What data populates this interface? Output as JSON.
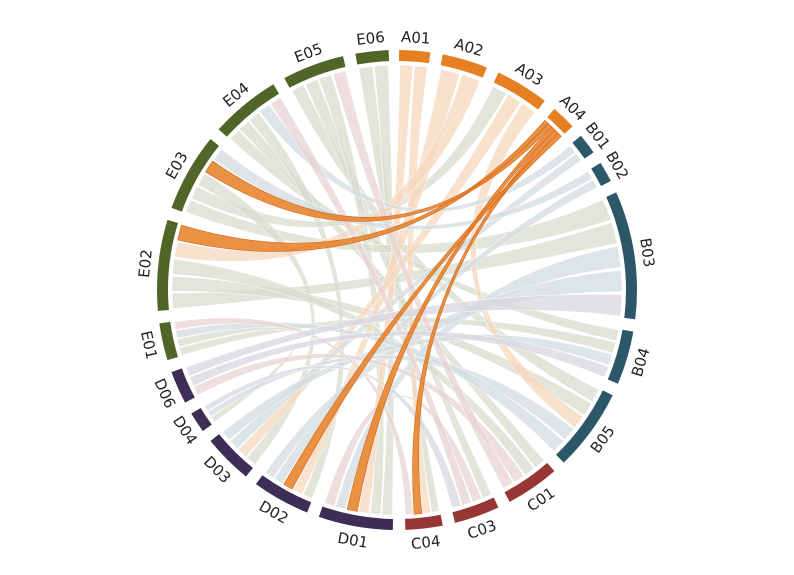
{
  "chart_data": {
    "type": "chord",
    "title": "",
    "center": [
      397,
      290
    ],
    "outer_radius": 240,
    "inner_radius": 229,
    "ribbon_radius": 225,
    "groups": {
      "A": {
        "color": "#E67E22",
        "ribbon": "#F6D7BC"
      },
      "B": {
        "color": "#2C5768",
        "ribbon": "#D3DCE0"
      },
      "C": {
        "color": "#963735",
        "ribbon": "#E8D3D3"
      },
      "D": {
        "color": "#3E2E55",
        "ribbon": "#DAD7DF"
      },
      "E": {
        "color": "#506628",
        "ribbon": "#D7DCCD"
      }
    },
    "highlight": {
      "segment": "A04",
      "color": "#D2691E"
    },
    "segments": [
      {
        "id": "A01",
        "group": "A",
        "start": 0.5,
        "end": 8
      },
      {
        "id": "A02",
        "group": "A",
        "start": 11,
        "end": 22
      },
      {
        "id": "A03",
        "group": "A",
        "start": 25,
        "end": 38
      },
      {
        "id": "A04",
        "group": "A",
        "start": 41,
        "end": 47
      },
      {
        "id": "B01",
        "group": "B",
        "start": 50,
        "end": 55
      },
      {
        "id": "B02",
        "group": "B",
        "start": 58,
        "end": 63
      },
      {
        "id": "B03",
        "group": "B",
        "start": 66,
        "end": 97
      },
      {
        "id": "B04",
        "group": "B",
        "start": 100,
        "end": 113
      },
      {
        "id": "B05",
        "group": "B",
        "start": 116,
        "end": 136
      },
      {
        "id": "C01",
        "group": "C",
        "start": 139,
        "end": 152
      },
      {
        "id": "C03",
        "group": "C",
        "start": 155,
        "end": 166
      },
      {
        "id": "C04",
        "group": "C",
        "start": 169,
        "end": 178
      },
      {
        "id": "D01",
        "group": "D",
        "start": 181,
        "end": 199
      },
      {
        "id": "D02",
        "group": "D",
        "start": 202,
        "end": 216
      },
      {
        "id": "D03",
        "group": "D",
        "start": 219,
        "end": 231
      },
      {
        "id": "D04",
        "group": "D",
        "start": 234,
        "end": 239
      },
      {
        "id": "D06",
        "group": "D",
        "start": 242,
        "end": 250
      },
      {
        "id": "E01",
        "group": "E",
        "start": 253,
        "end": 262
      },
      {
        "id": "E02",
        "group": "E",
        "start": 265,
        "end": 287
      },
      {
        "id": "E03",
        "group": "E",
        "start": 290,
        "end": 309
      },
      {
        "id": "E04",
        "group": "E",
        "start": 312,
        "end": 329
      },
      {
        "id": "E05",
        "group": "E",
        "start": 332,
        "end": 347
      },
      {
        "id": "E06",
        "group": "E",
        "start": 350,
        "end": 358
      }
    ],
    "ribbons": [
      [
        "E06",
        "C04"
      ],
      [
        "E06",
        "D01"
      ],
      [
        "E05",
        "B05"
      ],
      [
        "E05",
        "C03"
      ],
      [
        "E05",
        "D01"
      ],
      [
        "E04",
        "B04"
      ],
      [
        "E04",
        "C01"
      ],
      [
        "E04",
        "D02"
      ],
      [
        "E03",
        "B03"
      ],
      [
        "E03",
        "A03"
      ],
      [
        "E03",
        "D03"
      ],
      [
        "E02",
        "B03"
      ],
      [
        "E02",
        "B05"
      ],
      [
        "E02",
        "C01"
      ],
      [
        "E01",
        "B04"
      ],
      [
        "E01",
        "D04"
      ],
      [
        "A01",
        "D01"
      ],
      [
        "A01",
        "C04"
      ],
      [
        "A02",
        "D02"
      ],
      [
        "A02",
        "E02"
      ],
      [
        "A03",
        "D03"
      ],
      [
        "A03",
        "B05"
      ],
      [
        "A04",
        "E02"
      ],
      [
        "A04",
        "E03"
      ],
      [
        "A04",
        "D01"
      ],
      [
        "A04",
        "C04"
      ],
      [
        "A04",
        "D02"
      ],
      [
        "B01",
        "E04"
      ],
      [
        "B01",
        "D03"
      ],
      [
        "B02",
        "E03"
      ],
      [
        "B02",
        "D02"
      ],
      [
        "B03",
        "D01"
      ],
      [
        "B03",
        "D02"
      ],
      [
        "B04",
        "D03"
      ],
      [
        "B05",
        "D04"
      ],
      [
        "B05",
        "E01"
      ],
      [
        "C01",
        "D06"
      ],
      [
        "C01",
        "E05"
      ],
      [
        "C03",
        "D01"
      ],
      [
        "C03",
        "E04"
      ],
      [
        "C04",
        "E01"
      ],
      [
        "D06",
        "B04"
      ],
      [
        "D06",
        "B03"
      ],
      [
        "D04",
        "C03"
      ]
    ]
  }
}
